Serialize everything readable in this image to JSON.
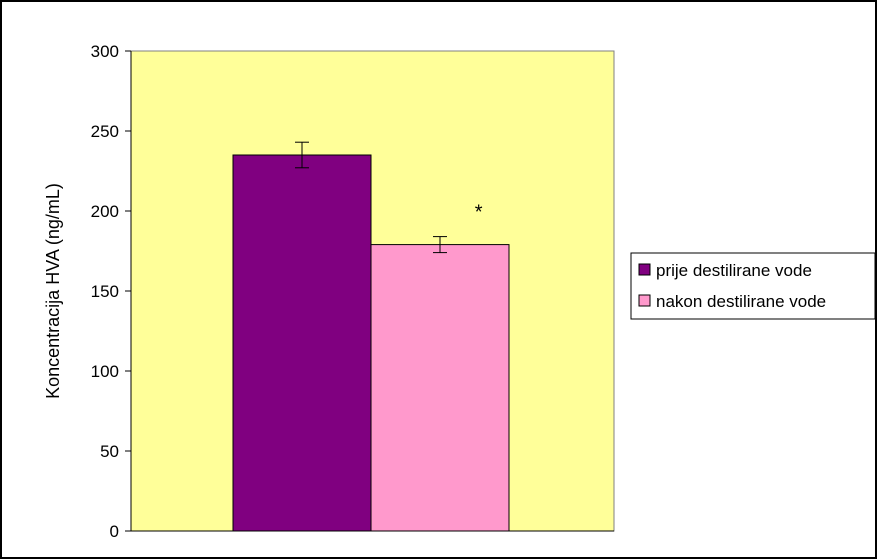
{
  "chart_data": {
    "type": "bar",
    "categories": [
      ""
    ],
    "series": [
      {
        "name": "prije destilirane vode",
        "values": [
          235
        ],
        "error": [
          8
        ],
        "color": "#800080"
      },
      {
        "name": "nakon destilirane vode",
        "values": [
          179
        ],
        "error": [
          5
        ],
        "color": "#ff99cc"
      }
    ],
    "ylabel": "Koncentracija HVA (ng/mL)",
    "ylim": [
      0,
      300
    ],
    "yticks": [
      0,
      50,
      100,
      150,
      200,
      250,
      300
    ],
    "plot_background": "#ffff99",
    "legend_placement": "right",
    "grid": false,
    "annotations": [
      {
        "text": "*",
        "series_index": 1
      }
    ]
  }
}
